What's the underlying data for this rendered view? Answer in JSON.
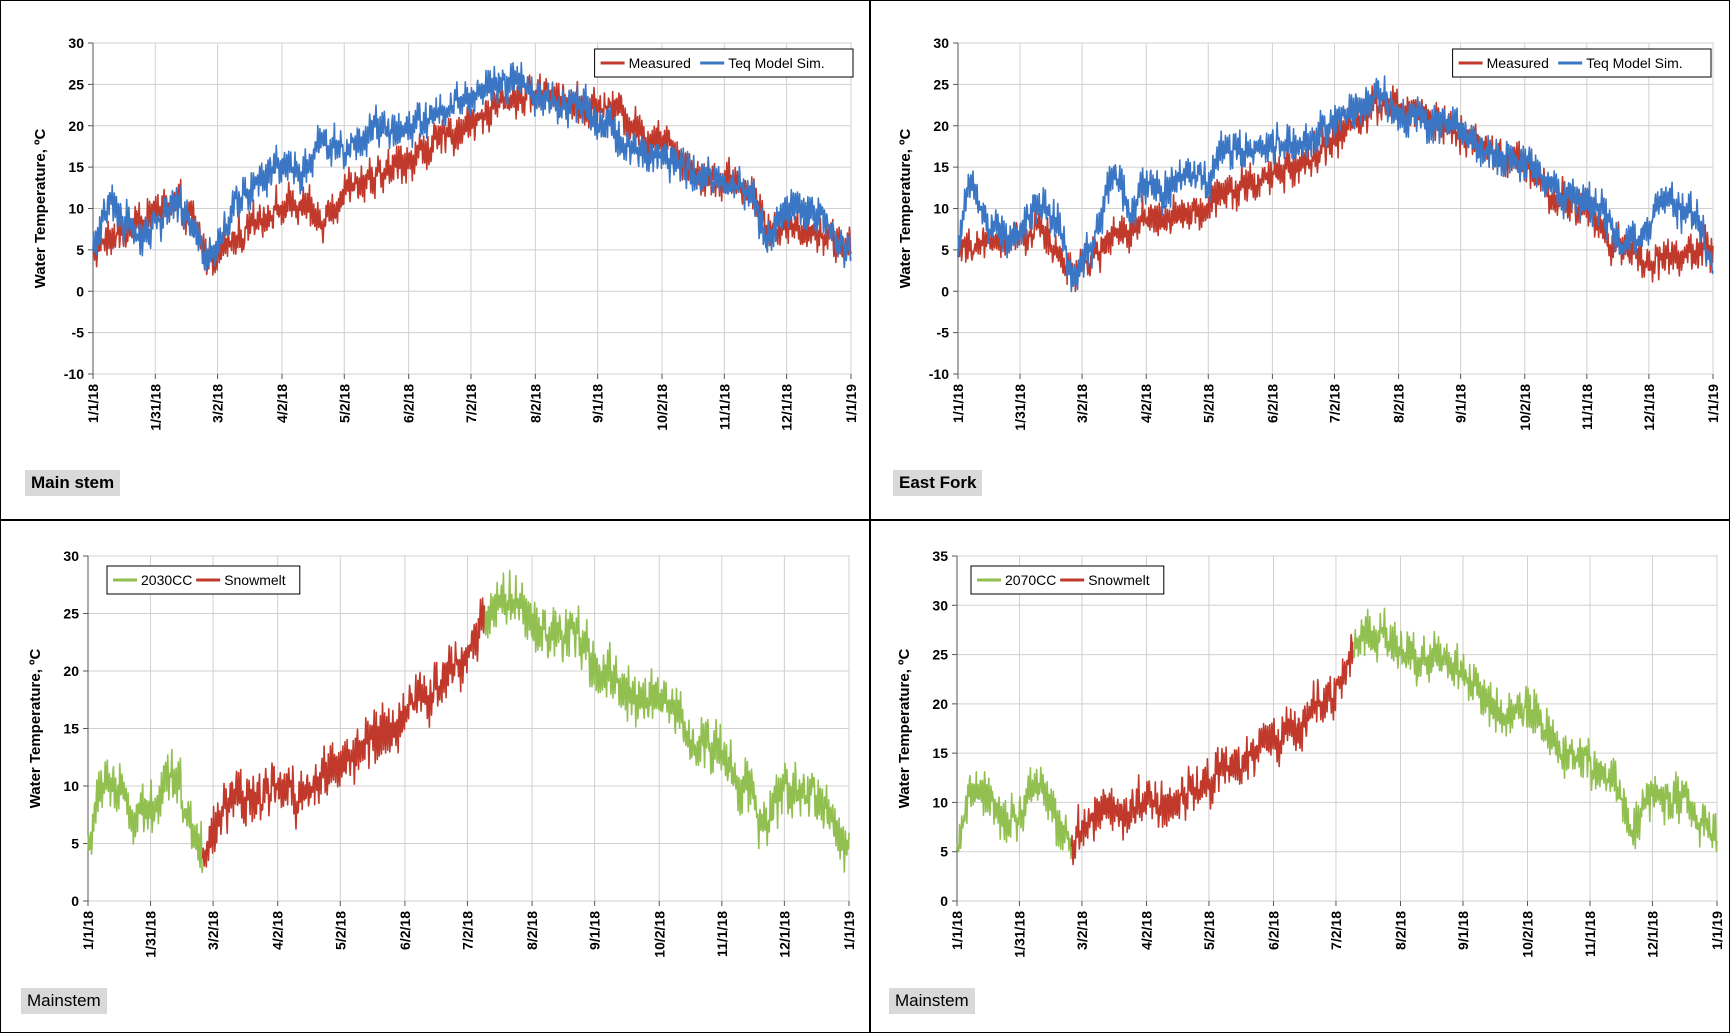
{
  "charts": [
    {
      "panel_label": "Main stem",
      "bold_label": true,
      "chart_data": {
        "type": "line",
        "ylabel": "Water Temperature, ºC",
        "ylim": [
          -10,
          30
        ],
        "yticks": [
          -10,
          -5,
          0,
          5,
          10,
          15,
          20,
          25,
          30
        ],
        "x_ticks": [
          "1/1/18",
          "1/31/18",
          "3/2/18",
          "4/2/18",
          "5/2/18",
          "6/2/18",
          "7/2/18",
          "8/2/18",
          "9/1/18",
          "10/2/18",
          "11/1/18",
          "12/1/18",
          "1/1/19"
        ],
        "x_tick_days": [
          0,
          30,
          60,
          91,
          121,
          152,
          182,
          213,
          243,
          274,
          304,
          334,
          365
        ],
        "xlim": [
          0,
          365
        ],
        "grid": true,
        "legend_position": "top-right",
        "series": [
          {
            "name": "Measured",
            "color": "#c0392b",
            "x": [
              0,
              30,
              40,
              48,
              55,
              62,
              70,
              80,
              91,
              100,
              110,
              121,
              135,
              152,
              165,
              182,
              195,
              205,
              213,
              225,
              235,
              243,
              255,
              265,
              274,
              290,
              304,
              318,
              324,
              334,
              350,
              365
            ],
            "y": [
              5,
              9.6,
              10.5,
              8.6,
              4,
              5.2,
              6.6,
              9,
              10,
              10.2,
              8.4,
              11.9,
              13.6,
              15.9,
              17.9,
              20.3,
              22.7,
              23.6,
              23.9,
              23.8,
              22.3,
              22.2,
              21.9,
              18.5,
              18.9,
              14,
              13.5,
              12,
              8.1,
              7.8,
              7,
              5
            ]
          },
          {
            "name": "Teq Model Sim.",
            "color": "#3b76c4",
            "x": [
              0,
              8,
              15,
              22,
              30,
              40,
              48,
              55,
              62,
              70,
              80,
              91,
              100,
              110,
              121,
              135,
              152,
              165,
              182,
              195,
              205,
              213,
              225,
              235,
              243,
              255,
              265,
              274,
              290,
              304,
              318,
              324,
              334,
              350,
              365
            ],
            "y": [
              4.5,
              11,
              9,
              6.5,
              8,
              11,
              7.5,
              4.5,
              6.5,
              11.5,
              13,
              15.5,
              14,
              18,
              17,
              19.5,
              19.8,
              21.5,
              23.5,
              25,
              25.7,
              24,
              22,
              23.2,
              20.5,
              18.5,
              16.7,
              16.5,
              14,
              13,
              11.4,
              5.5,
              10.5,
              9.5,
              4.5
            ]
          }
        ]
      }
    },
    {
      "panel_label": "East Fork",
      "bold_label": true,
      "chart_data": {
        "type": "line",
        "ylabel": "Water Temperature, ºC",
        "ylim": [
          -10,
          30
        ],
        "yticks": [
          -10,
          -5,
          0,
          5,
          10,
          15,
          20,
          25,
          30
        ],
        "x_ticks": [
          "1/1/18",
          "1/31/18",
          "3/2/18",
          "4/2/18",
          "5/2/18",
          "6/2/18",
          "7/2/18",
          "8/2/18",
          "9/1/18",
          "10/2/18",
          "11/1/18",
          "12/1/18",
          "1/1/19"
        ],
        "x_tick_days": [
          0,
          30,
          60,
          91,
          121,
          152,
          182,
          213,
          243,
          274,
          304,
          334,
          365
        ],
        "xlim": [
          0,
          365
        ],
        "grid": true,
        "legend_position": "top-right",
        "series": [
          {
            "name": "Measured",
            "color": "#c0392b",
            "x": [
              0,
              25,
              40,
              50,
              58,
              65,
              80,
              91,
              110,
              121,
              135,
              152,
              165,
              182,
              195,
              205,
              213,
              225,
              243,
              260,
              274,
              290,
              304,
              315,
              322,
              334,
              365
            ],
            "y": [
              5,
              6.6,
              7.5,
              3.5,
              2,
              4,
              7.5,
              8.3,
              9.1,
              10.5,
              12.3,
              14,
              15.3,
              18.2,
              21.5,
              22.6,
              21.9,
              21.5,
              19,
              16.6,
              15.6,
              10.8,
              10.3,
              5.5,
              5.3,
              3.5,
              5
            ]
          },
          {
            "name": "Teq Model Sim.",
            "color": "#3b76c4",
            "x": [
              0,
              5,
              15,
              25,
              40,
              50,
              55,
              60,
              70,
              75,
              85,
              91,
              100,
              110,
              121,
              130,
              140,
              152,
              165,
              182,
              195,
              205,
              213,
              225,
              243,
              260,
              274,
              290,
              304,
              312,
              320,
              330,
              340,
              355,
              365
            ],
            "y": [
              4,
              13,
              8.5,
              6,
              10.8,
              7.5,
              2,
              3,
              9,
              14.5,
              9,
              13.5,
              12,
              14.5,
              13,
              17.5,
              16.5,
              18.2,
              17.5,
              20.3,
              22.9,
              23.5,
              22,
              20.5,
              20,
              15.5,
              16,
              12.3,
              10.3,
              9.5,
              5.2,
              6.5,
              11.5,
              9.5,
              3.5
            ]
          }
        ]
      }
    },
    {
      "panel_label": "Mainstem",
      "bold_label": false,
      "chart_data": {
        "type": "line",
        "ylabel": "Water Temperature, ºC",
        "ylim": [
          0,
          30
        ],
        "yticks": [
          0,
          5,
          10,
          15,
          20,
          25,
          30
        ],
        "x_ticks": [
          "1/1/18",
          "1/31/18",
          "3/2/18",
          "4/2/18",
          "5/2/18",
          "6/2/18",
          "7/2/18",
          "8/2/18",
          "9/1/18",
          "10/2/18",
          "11/1/18",
          "12/1/18",
          "1/1/19"
        ],
        "x_tick_days": [
          0,
          30,
          60,
          91,
          121,
          152,
          182,
          213,
          243,
          274,
          304,
          334,
          365
        ],
        "xlim": [
          0,
          365
        ],
        "grid": true,
        "legend_position": "top-left",
        "series": [
          {
            "name": "2030CC",
            "color": "#92c050",
            "segments": [
              {
                "x": [
                  0,
                  8,
                  15,
                  22,
                  30,
                  40,
                  48,
                  55
                ],
                "y": [
                  4.5,
                  11,
                  9.5,
                  7,
                  8,
                  11.5,
                  7.5,
                  4
                ]
              },
              {
                "x": [
                  190,
                  198,
                  205,
                  213,
                  225,
                  235,
                  243,
                  255,
                  265,
                  274,
                  290,
                  304,
                  318,
                  324,
                  334,
                  350,
                  365
                ],
                "y": [
                  24.8,
                  25.8,
                  26,
                  23.5,
                  22.5,
                  23,
                  20.5,
                  19,
                  17,
                  18.5,
                  13.5,
                  13,
                  9.5,
                  6,
                  10,
                  9,
                  4.5
                ]
              }
            ]
          },
          {
            "name": "Snowmelt",
            "color": "#c0392b",
            "segments": [
              {
                "x": [
                  55,
                  62,
                  70,
                  80,
                  91,
                  100,
                  110,
                  121,
                  135,
                  152,
                  165,
                  182,
                  190
                ],
                "y": [
                  4,
                  7,
                  9.5,
                  8.5,
                  10,
                  9,
                  10.5,
                  12,
                  14,
                  16,
                  18.5,
                  21.5,
                  24.8
                ]
              }
            ]
          }
        ]
      }
    },
    {
      "panel_label": "Mainstem",
      "bold_label": false,
      "chart_data": {
        "type": "line",
        "ylabel": "Water Temperature, ºC",
        "ylim": [
          0,
          35
        ],
        "yticks": [
          0,
          5,
          10,
          15,
          20,
          25,
          30,
          35
        ],
        "x_ticks": [
          "1/1/18",
          "1/31/18",
          "3/2/18",
          "4/2/18",
          "5/2/18",
          "6/2/18",
          "7/2/18",
          "8/2/18",
          "9/1/18",
          "10/2/18",
          "11/1/18",
          "12/1/18",
          "1/1/19"
        ],
        "x_tick_days": [
          0,
          30,
          60,
          91,
          121,
          152,
          182,
          213,
          243,
          274,
          304,
          334,
          365
        ],
        "xlim": [
          0,
          365
        ],
        "grid": true,
        "legend_position": "top-left",
        "series": [
          {
            "name": "2070CC",
            "color": "#92c050",
            "segments": [
              {
                "x": [
                  0,
                  8,
                  15,
                  22,
                  30,
                  40,
                  48,
                  55
                ],
                "y": [
                  4.8,
                  12,
                  10,
                  8,
                  9,
                  12,
                  8,
                  6
                ]
              },
              {
                "x": [
                  190,
                  198,
                  205,
                  213,
                  225,
                  235,
                  243,
                  255,
                  265,
                  274,
                  290,
                  304,
                  318,
                  324,
                  334,
                  350,
                  365
                ],
                "y": [
                  25,
                  27,
                  27.5,
                  25,
                  24.5,
                  24.5,
                  22.5,
                  20.5,
                  18.5,
                  20,
                  15,
                  14.5,
                  11,
                  7,
                  11,
                  10,
                  6
                ]
              }
            ]
          },
          {
            "name": "Snowmelt",
            "color": "#c0392b",
            "segments": [
              {
                "x": [
                  55,
                  62,
                  70,
                  80,
                  91,
                  100,
                  110,
                  121,
                  135,
                  152,
                  165,
                  182,
                  190
                ],
                "y": [
                  6,
                  7.5,
                  10,
                  8.5,
                  10.5,
                  9.5,
                  11,
                  12.5,
                  14,
                  16,
                  18,
                  21.5,
                  25
                ]
              }
            ]
          }
        ]
      }
    }
  ]
}
